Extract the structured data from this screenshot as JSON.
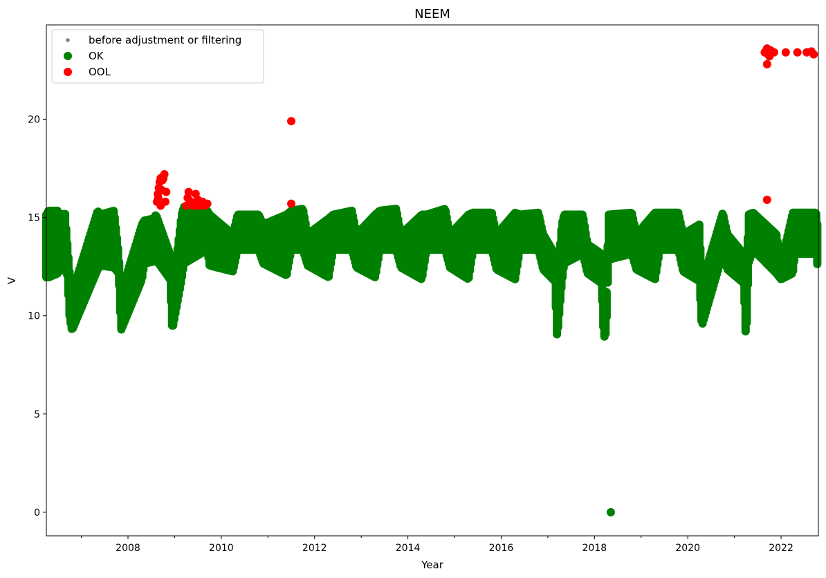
{
  "chart_data": {
    "type": "scatter",
    "title": "NEEM",
    "xlabel": "Year",
    "ylabel": "V",
    "xlim": [
      2006.25,
      2022.8
    ],
    "ylim": [
      -1.2,
      24.8
    ],
    "x_ticks": [
      2008,
      2010,
      2012,
      2014,
      2016,
      2018,
      2020,
      2022
    ],
    "x_tick_labels": [
      "2008",
      "2010",
      "2012",
      "2014",
      "2016",
      "2018",
      "2020",
      "2022"
    ],
    "y_ticks": [
      0,
      5,
      10,
      15,
      20
    ],
    "y_tick_labels": [
      "0",
      "5",
      "10",
      "15",
      "20"
    ],
    "grid": false,
    "legend_placement": "top-left",
    "legend": [
      {
        "label": "before adjustment or filtering",
        "color": "#808080",
        "marker": "small-dot"
      },
      {
        "label": "OK",
        "color": "#008000",
        "marker": "dot"
      },
      {
        "label": "OOL",
        "color": "#ff0000",
        "marker": "dot"
      }
    ],
    "series": [
      {
        "name": "OK",
        "color": "#008000",
        "style": "dense",
        "x": [
          2006.25,
          2006.3,
          2006.5,
          2006.55,
          2006.65,
          2006.7,
          2006.75,
          2006.8,
          2007.35,
          2007.4,
          2007.7,
          2007.8,
          2007.85,
          2008.3,
          2008.35,
          2008.55,
          2008.6,
          2008.9,
          2008.95,
          2009.15,
          2009.2,
          2009.7,
          2009.75,
          2010.25,
          2010.35,
          2010.8,
          2010.9,
          2011.4,
          2011.5,
          2011.75,
          2011.85,
          2012.3,
          2012.4,
          2012.8,
          2012.9,
          2013.3,
          2013.4,
          2013.75,
          2013.85,
          2014.3,
          2014.4,
          2014.8,
          2014.9,
          2015.3,
          2015.4,
          2015.8,
          2015.9,
          2016.3,
          2016.4,
          2016.8,
          2016.9,
          2017.15,
          2017.2,
          2017.3,
          2017.35,
          2017.75,
          2017.85,
          2018.15,
          2018.2,
          2018.25,
          2018.3,
          2018.8,
          2018.9,
          2019.3,
          2019.4,
          2019.8,
          2019.9,
          2020.25,
          2020.3,
          2020.75,
          2020.85,
          2021.2,
          2021.25,
          2021.3,
          2021.4,
          2021.9,
          2022.0,
          2022.25,
          2022.3,
          2022.75,
          2022.8
        ],
        "low": [
          12.1,
          12.1,
          12.3,
          12.6,
          12.5,
          12.2,
          10.0,
          9.4,
          12.5,
          12.7,
          12.6,
          12.3,
          9.4,
          12.0,
          12.8,
          12.9,
          13.0,
          12.0,
          9.4,
          12.0,
          12.8,
          13.5,
          12.7,
          12.4,
          13.5,
          13.5,
          12.8,
          12.2,
          13.5,
          13.5,
          12.7,
          12.1,
          13.5,
          13.5,
          12.6,
          12.1,
          13.5,
          13.5,
          12.6,
          12.0,
          13.5,
          13.5,
          12.6,
          12.0,
          13.5,
          13.5,
          12.5,
          12.0,
          13.5,
          13.5,
          12.5,
          11.9,
          9.0,
          11.8,
          12.8,
          13.3,
          12.3,
          11.8,
          9.0,
          9.3,
          13.0,
          13.3,
          12.5,
          12.0,
          13.5,
          13.5,
          12.4,
          11.9,
          9.6,
          13.3,
          12.5,
          11.8,
          8.7,
          12.8,
          13.5,
          12.3,
          12.0,
          12.3,
          13.3,
          13.3,
          12.3
        ],
        "high": [
          15.0,
          15.2,
          15.2,
          14.8,
          15.1,
          13.5,
          12.0,
          11.0,
          15.2,
          15.0,
          15.2,
          13.0,
          11.0,
          14.5,
          14.7,
          14.8,
          15.0,
          13.0,
          11.0,
          15.0,
          15.4,
          15.2,
          15.0,
          14.0,
          15.0,
          15.0,
          14.5,
          15.0,
          15.2,
          15.3,
          14.0,
          14.8,
          15.0,
          15.2,
          14.0,
          15.0,
          15.2,
          15.3,
          14.0,
          15.0,
          15.0,
          15.3,
          14.0,
          15.0,
          15.1,
          15.1,
          14.0,
          15.1,
          15.0,
          15.1,
          14.0,
          13.0,
          11.5,
          14.5,
          15.0,
          15.0,
          13.5,
          13.0,
          10.5,
          10.0,
          15.0,
          15.1,
          14.0,
          15.1,
          15.1,
          15.1,
          14.0,
          14.5,
          11.5,
          15.1,
          14.0,
          13.0,
          10.5,
          15.0,
          15.1,
          14.0,
          12.5,
          15.1,
          15.1,
          15.1,
          14.0
        ],
        "points": [
          [
            2018.35,
            0.0
          ]
        ]
      },
      {
        "name": "OOL",
        "color": "#ff0000",
        "points": [
          [
            2008.62,
            15.8
          ],
          [
            2008.64,
            16.2
          ],
          [
            2008.66,
            16.5
          ],
          [
            2008.68,
            16.8
          ],
          [
            2008.7,
            15.6
          ],
          [
            2008.72,
            16.4
          ],
          [
            2008.74,
            16.9
          ],
          [
            2008.76,
            17.0
          ],
          [
            2008.78,
            17.2
          ],
          [
            2008.8,
            15.8
          ],
          [
            2008.82,
            16.3
          ],
          [
            2008.7,
            17.0
          ],
          [
            2008.65,
            16.0
          ],
          [
            2009.25,
            15.6
          ],
          [
            2009.28,
            16.0
          ],
          [
            2009.3,
            16.3
          ],
          [
            2009.35,
            15.8
          ],
          [
            2009.4,
            15.6
          ],
          [
            2009.45,
            16.2
          ],
          [
            2009.5,
            15.9
          ],
          [
            2009.55,
            15.7
          ],
          [
            2009.6,
            15.8
          ],
          [
            2009.65,
            15.6
          ],
          [
            2009.7,
            15.7
          ],
          [
            2009.42,
            15.6
          ],
          [
            2009.52,
            15.6
          ],
          [
            2011.5,
            19.9
          ],
          [
            2011.5,
            15.7
          ],
          [
            2021.7,
            15.9
          ],
          [
            2021.65,
            23.4
          ],
          [
            2021.68,
            23.5
          ],
          [
            2021.7,
            23.6
          ],
          [
            2021.72,
            23.3
          ],
          [
            2021.7,
            22.8
          ],
          [
            2021.75,
            23.2
          ],
          [
            2021.78,
            23.5
          ],
          [
            2021.85,
            23.4
          ],
          [
            2022.1,
            23.4
          ],
          [
            2022.35,
            23.4
          ],
          [
            2022.55,
            23.4
          ],
          [
            2022.65,
            23.45
          ],
          [
            2022.7,
            23.3
          ]
        ]
      }
    ]
  }
}
